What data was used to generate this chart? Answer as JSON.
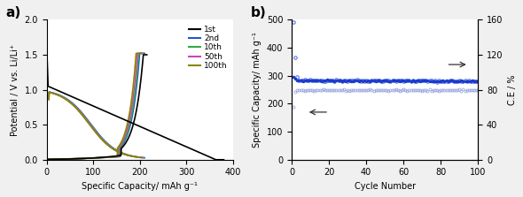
{
  "panel_a": {
    "xlabel": "Specific Capacity/ mAh g⁻¹",
    "ylabel": "Potential / V vs. Li/Li⁺",
    "xlim": [
      0,
      400
    ],
    "ylim": [
      0,
      2.0
    ],
    "xticks": [
      0,
      100,
      200,
      300,
      400
    ],
    "yticks": [
      0.0,
      0.5,
      1.0,
      1.5,
      2.0
    ],
    "legend_labels": [
      "1st",
      "2nd",
      "10th",
      "50th",
      "100th"
    ],
    "legend_colors": [
      "#000000",
      "#2255cc",
      "#33aa44",
      "#cc44bb",
      "#888800"
    ],
    "curve_lw": 1.2
  },
  "panel_b": {
    "xlabel": "Cycle Number",
    "ylabel_left": "Specific Capacity/ mAh g⁻¹",
    "ylabel_right": "C.E / %",
    "xlim": [
      0,
      100
    ],
    "ylim_left": [
      0,
      500
    ],
    "ylim_right": [
      0,
      160
    ],
    "xticks": [
      0,
      20,
      40,
      60,
      80,
      100
    ],
    "yticks_left": [
      0,
      100,
      200,
      300,
      400,
      500
    ],
    "yticks_right": [
      0,
      40,
      80,
      120,
      160
    ],
    "charge_color": "#1a3acc",
    "discharge_color": "#4466dd",
    "ce_color": "#8899dd",
    "arrow_color": "#333333"
  }
}
